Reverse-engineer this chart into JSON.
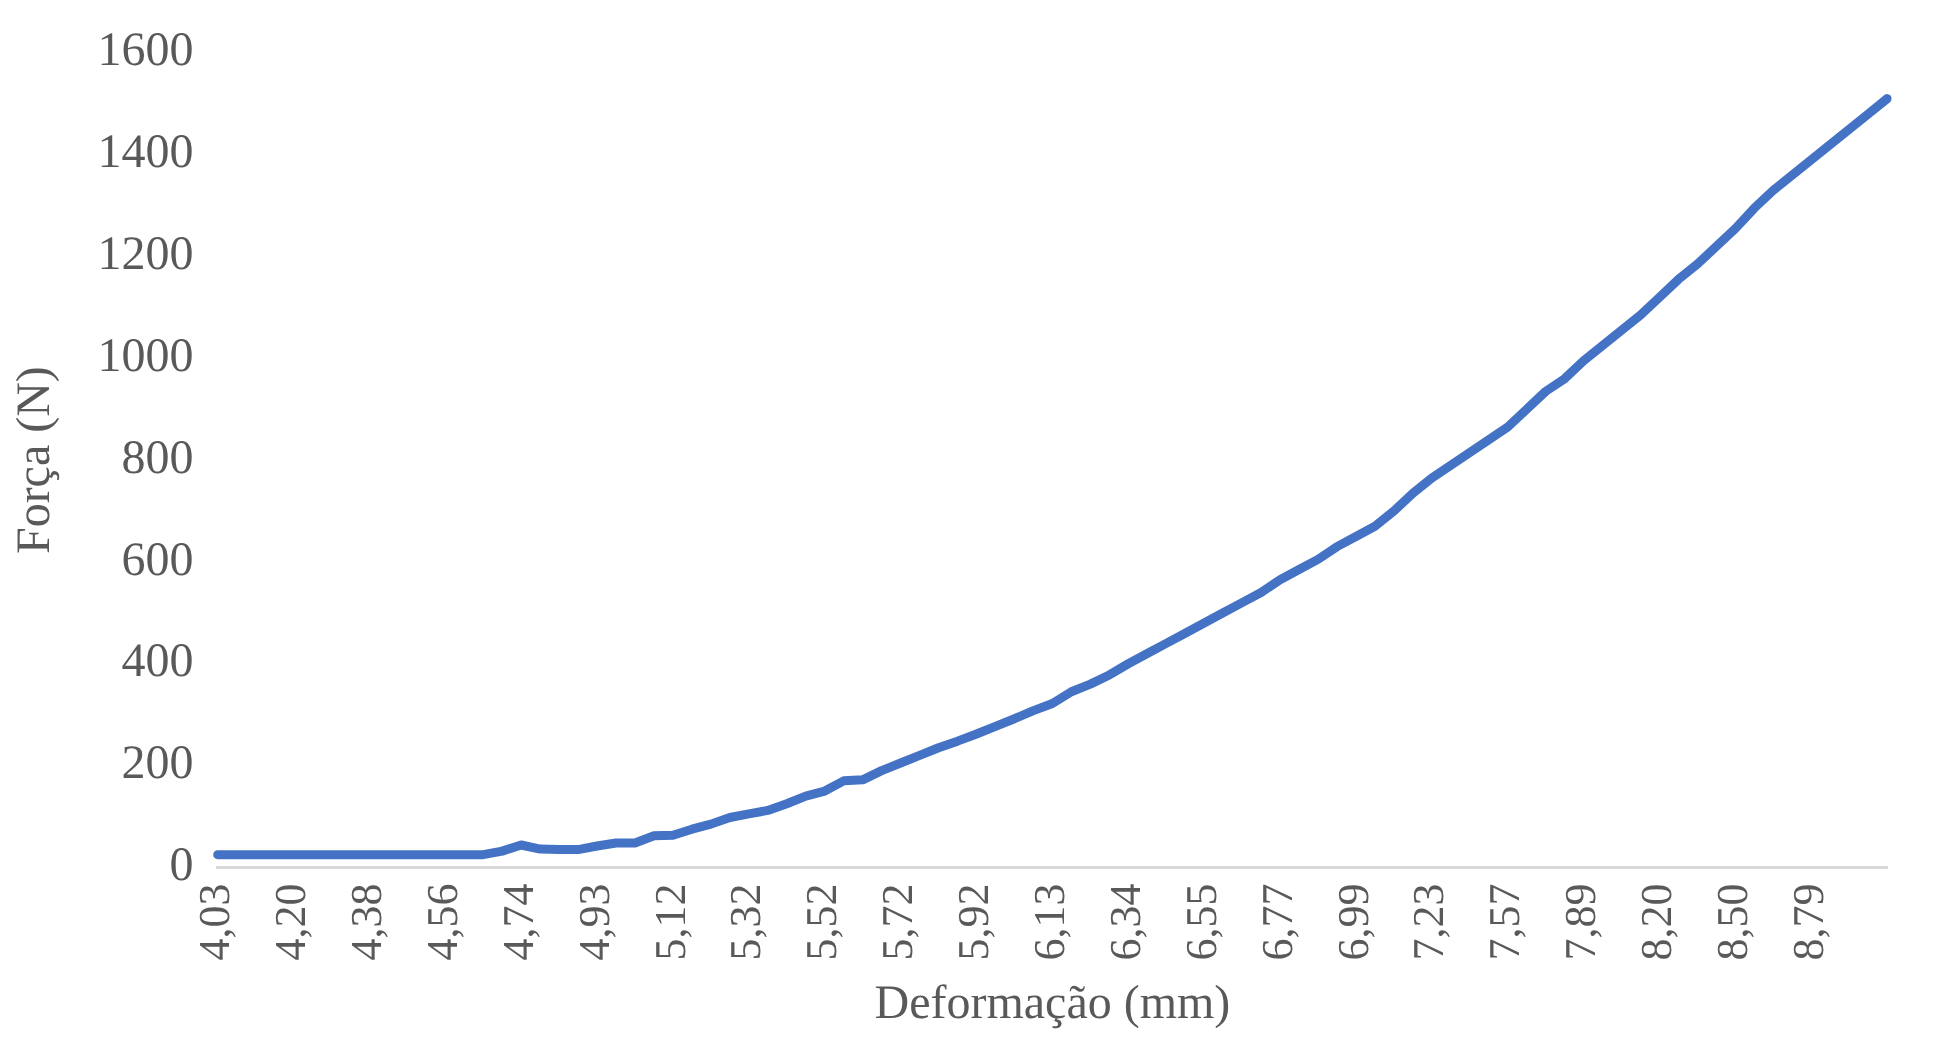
{
  "chart_data": {
    "type": "line",
    "xlabel": "Deformação (mm)",
    "ylabel": "Força (N)",
    "categories": [
      "4,03",
      null,
      null,
      null,
      "4,20",
      null,
      null,
      null,
      "4,38",
      null,
      null,
      null,
      "4,56",
      null,
      null,
      null,
      "4,74",
      null,
      null,
      null,
      "4,93",
      null,
      null,
      null,
      "5,12",
      null,
      null,
      null,
      "5,32",
      null,
      null,
      null,
      "5,52",
      null,
      null,
      null,
      "5,72",
      null,
      null,
      null,
      "5,92",
      null,
      null,
      null,
      "6,13",
      null,
      null,
      null,
      "6,34",
      null,
      null,
      null,
      "6,55",
      null,
      null,
      null,
      "6,77",
      null,
      null,
      null,
      "6,99",
      null,
      null,
      null,
      "7,23",
      null,
      null,
      null,
      "7,57",
      null,
      null,
      null,
      "7,89",
      null,
      null,
      null,
      "8,20",
      null,
      null,
      null,
      "8,50",
      null,
      null,
      null,
      "8,79",
      null,
      null,
      null,
      null
    ],
    "series": [
      {
        "color": "#4472c4",
        "values": [
          25,
          25,
          25,
          25,
          25,
          25,
          25,
          25,
          25,
          25,
          25,
          25,
          25,
          25,
          25,
          32,
          44,
          36,
          35,
          35,
          42,
          48,
          48,
          62,
          63,
          75,
          85,
          98,
          105,
          112,
          125,
          140,
          150,
          170,
          172,
          190,
          205,
          220,
          235,
          248,
          262,
          277,
          292,
          308,
          322,
          345,
          360,
          378,
          400,
          420,
          440,
          460,
          480,
          500,
          520,
          540,
          565,
          585,
          605,
          630,
          650,
          670,
          700,
          735,
          765,
          790,
          815,
          840,
          865,
          900,
          935,
          960,
          995,
          1025,
          1055,
          1085,
          1120,
          1155,
          1185,
          1220,
          1255,
          1295,
          1330,
          1360,
          1390,
          1420,
          1450,
          1480,
          1510
        ]
      }
    ],
    "ylim": [
      0,
      1600
    ],
    "yticks": [
      0,
      200,
      400,
      600,
      800,
      1000,
      1200,
      1400,
      1600
    ],
    "grid": false,
    "legend": false,
    "marker": "none",
    "line_style": "solid"
  }
}
